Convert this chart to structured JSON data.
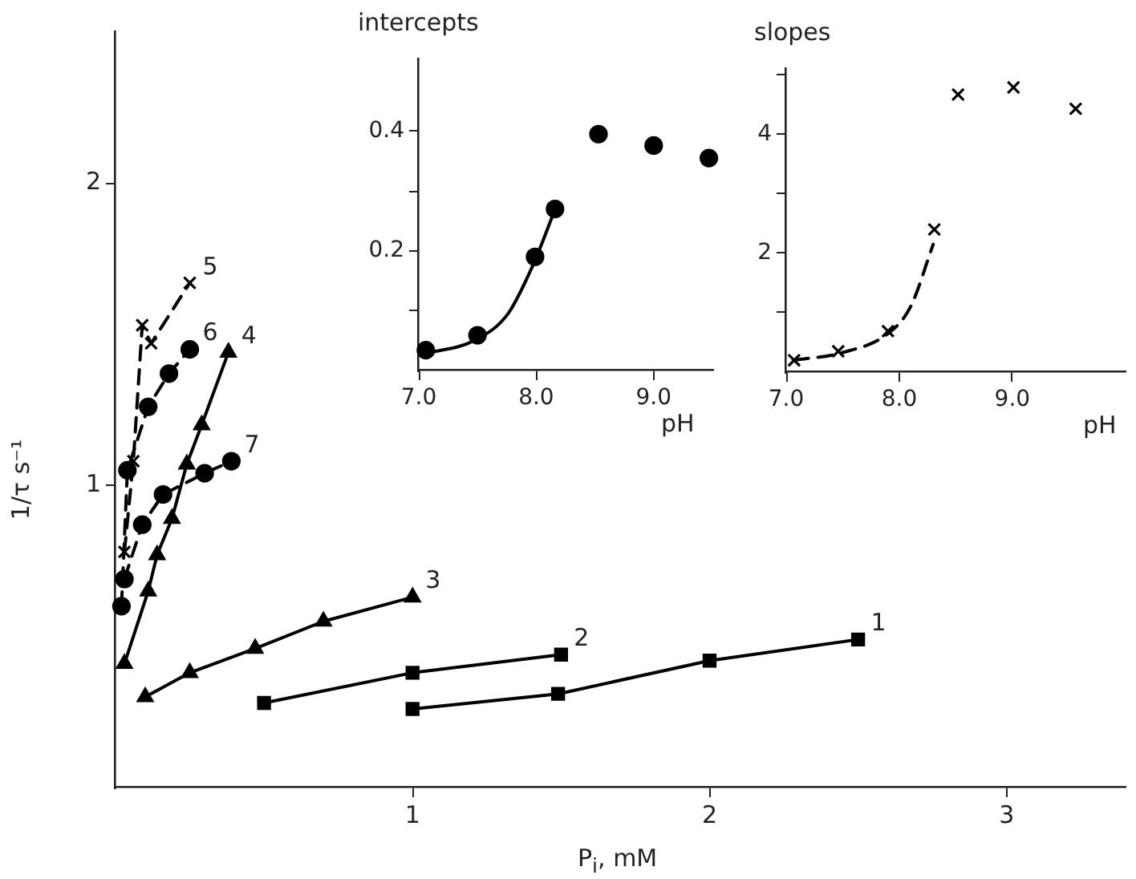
{
  "chart_data": [
    {
      "type": "line",
      "xlabel": "P$_{i}$, mM",
      "ylabel": "1/τ s⁻¹",
      "xlim": [
        0,
        3.4
      ],
      "ylim": [
        0,
        2.5
      ],
      "xticks": [
        1,
        2,
        3
      ],
      "yticks": [
        1,
        2
      ],
      "grid": false,
      "legend": false,
      "series": [
        {
          "name": "1",
          "color": "#000000",
          "marker": "square",
          "line_style": "solid",
          "x": [
            1.0,
            1.49,
            2.0,
            2.5
          ],
          "values": [
            0.26,
            0.31,
            0.42,
            0.49
          ]
        },
        {
          "name": "2",
          "color": "#000000",
          "marker": "square",
          "line_style": "solid",
          "x": [
            0.5,
            1.0,
            1.5
          ],
          "values": [
            0.28,
            0.38,
            0.44
          ]
        },
        {
          "name": "3",
          "color": "#000000",
          "marker": "triangle",
          "line_style": "solid",
          "x": [
            0.1,
            0.25,
            0.47,
            0.7,
            1.0
          ],
          "values": [
            0.3,
            0.38,
            0.46,
            0.55,
            0.63
          ]
        },
        {
          "name": "4",
          "color": "#000000",
          "marker": "triangle",
          "line_style": "solid",
          "x": [
            0.03,
            0.11,
            0.14,
            0.19,
            0.24,
            0.29,
            0.38
          ],
          "values": [
            0.41,
            0.65,
            0.77,
            0.89,
            1.07,
            1.2,
            1.44
          ]
        },
        {
          "name": "5",
          "color": "#000000",
          "marker": "cross",
          "line_style": "dashed",
          "x": [
            0.03,
            0.06,
            0.09,
            0.12,
            0.25
          ],
          "values": [
            0.78,
            1.08,
            1.53,
            1.47,
            1.67
          ]
        },
        {
          "name": "6",
          "color": "#000000",
          "marker": "circle",
          "line_style": "dashed",
          "x": [
            0.02,
            0.04,
            0.11,
            0.18,
            0.25
          ],
          "values": [
            0.6,
            1.05,
            1.26,
            1.37,
            1.45
          ]
        },
        {
          "name": "7",
          "color": "#000000",
          "marker": "circle",
          "line_style": "dashed",
          "x": [
            0.03,
            0.09,
            0.16,
            0.3,
            0.39
          ],
          "values": [
            0.69,
            0.87,
            0.97,
            1.04,
            1.08
          ]
        }
      ]
    },
    {
      "type": "scatter",
      "title": "intercepts",
      "xlabel": "pH",
      "xlim": [
        7,
        9.5
      ],
      "ylim": [
        0,
        0.52
      ],
      "xticks": [
        {
          "value": 7,
          "label": "7.0"
        },
        {
          "value": 8,
          "label": "8.0"
        },
        {
          "value": 9,
          "label": "9.0"
        }
      ],
      "yticks": [
        {
          "value": 0.1,
          "label": null
        },
        0.2,
        {
          "value": 0.3,
          "label": null
        },
        0.4
      ],
      "grid": false,
      "legend": false,
      "series": [
        {
          "type": "scatter",
          "color": "#000000",
          "marker": "circle",
          "x": [
            7.06,
            7.5,
            7.99,
            8.16,
            8.53,
            9.0,
            9.47
          ],
          "values": [
            0.034,
            0.059,
            0.19,
            0.27,
            0.395,
            0.376,
            0.355
          ]
        },
        {
          "type": "line",
          "color": "#000000",
          "marker": "none",
          "line_style": "solid",
          "x": [
            7.05,
            7.47,
            7.76,
            7.97,
            8.15
          ],
          "values": [
            0.028,
            0.05,
            0.095,
            0.175,
            0.264
          ]
        }
      ]
    },
    {
      "type": "scatter",
      "title": "slopes",
      "xlabel": "pH",
      "xlim": [
        7,
        10
      ],
      "ylim": [
        0,
        5.1
      ],
      "xticks": [
        {
          "value": 7,
          "label": "7.0"
        },
        {
          "value": 8,
          "label": "8.0"
        },
        {
          "value": 9,
          "label": "9.0"
        }
      ],
      "yticks": [
        {
          "value": 1,
          "label": null
        },
        2,
        {
          "value": 3,
          "label": null
        },
        4,
        {
          "value": 5,
          "label": null
        }
      ],
      "grid": false,
      "legend": false,
      "series": [
        {
          "type": "scatter",
          "color": "#000000",
          "marker": "cross",
          "x": [
            7.07,
            7.46,
            7.9,
            8.31,
            8.52,
            9.01,
            9.56
          ],
          "values": [
            0.2,
            0.35,
            0.69,
            2.4,
            4.67,
            4.79,
            4.43
          ]
        },
        {
          "type": "line",
          "color": "#000000",
          "marker": "none",
          "line_style": "dashed",
          "x": [
            7.07,
            7.5,
            7.9,
            8.1,
            8.3
          ],
          "values": [
            0.2,
            0.33,
            0.65,
            1.1,
            2.15
          ]
        }
      ]
    }
  ]
}
